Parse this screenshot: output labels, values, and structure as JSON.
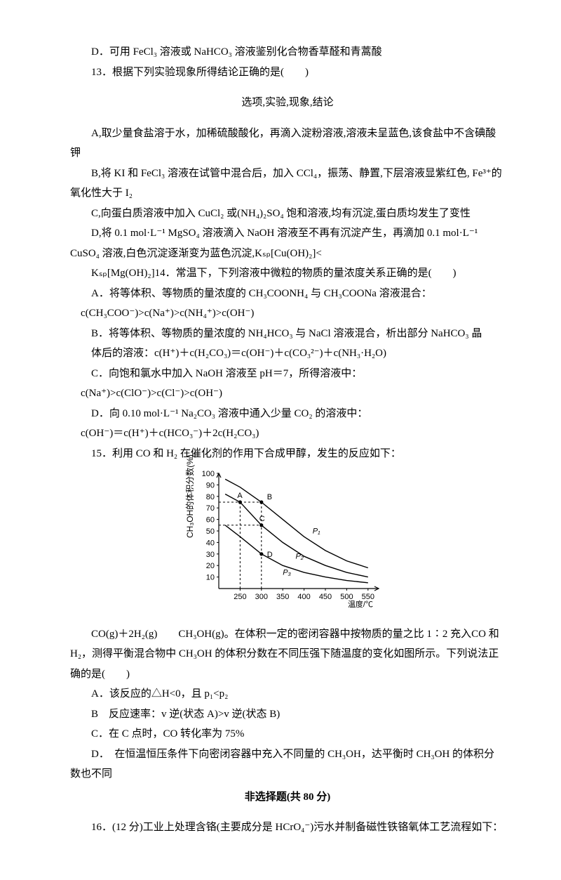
{
  "q12d": "D．可用 FeCl₃ 溶液或 NaHCO₃ 溶液鉴别化合物香草醛和青蒿酸",
  "q13": {
    "stem": "13．根据下列实验现象所得结论正确的是(　　)",
    "header": "选项,实验,现象,结论",
    "a": "A,取少量食盐溶于水，加稀硫酸酸化，再滴入淀粉溶液,溶液未呈蓝色,该食盐中不含碘酸钾",
    "b": "B,将 KI 和 FeCl₃ 溶液在试管中混合后，加入 CCl₄，振荡、静置,下层溶液显紫红色, Fe³⁺的氧化性大于 I₂",
    "c": "C,向蛋白质溶液中加入 CuCl₂ 或(NH₄)₂SO₄ 饱和溶液,均有沉淀,蛋白质均发生了变性",
    "d1": "D,将 0.1 mol·L⁻¹ MgSO₄ 溶液滴入 NaOH 溶液至不再有沉淀产生，再滴加 0.1 mol·L⁻¹ CuSO₄ 溶液,白色沉淀逐渐变为蓝色沉淀,Kₛₚ[Cu(OH)₂]<"
  },
  "q14": {
    "stem": "Kₛₚ[Mg(OH)₂]14．常温下，下列溶液中微粒的物质的量浓度关系正确的是(　　)",
    "a1": "A．将等体积、等物质的量浓度的 CH₃COONH₄ 与 CH₃COONa 溶液混合：",
    "a2": "c(CH₃COO⁻)>c(Na⁺)>c(NH₄⁺)>c(OH⁻)",
    "b1": "B．将等体积、等物质的量浓度的 NH₄HCO₃ 与 NaCl 溶液混合，析出部分 NaHCO₃ 晶",
    "b2": "体后的溶液：c(H⁺)＋c(H₂CO₃)＝c(OH⁻)＋c(CO₃²⁻)＋c(NH₃·H₂O)",
    "c1": "C．向饱和氯水中加入 NaOH 溶液至 pH＝7，所得溶液中：",
    "c2": "c(Na⁺)>c(ClO⁻)>c(Cl⁻)>c(OH⁻)",
    "d1": "D．向 0.10 mol·L⁻¹ Na₂CO₃ 溶液中通入少量 CO₂ 的溶液中：",
    "d2": "c(OH⁻)＝c(H⁺)＋c(HCO₃⁻)＋2c(H₂CO₃)"
  },
  "q15": {
    "stem": "15．利用 CO 和 H₂ 在催化剂的作用下合成甲醇，发生的反应如下：",
    "eq": "CO(g)＋2H₂(g)　　CH₃OH(g)。在体积一定的密闭容器中按物质的量之比 1∶2 充入CO 和 H₂，测得平衡混合物中 CH₃OH 的体积分数在不同压强下随温度的变化如图所示。下列说法正确的是(　　)",
    "a": "A．该反应的△H<0，且 p₁<p₂",
    "b": "B　反应速率：v 逆(状态 A)>v 逆(状态 B)",
    "c": "C．在 C 点时，CO 转化率为 75%",
    "d": "D．　在恒温恒压条件下向密闭容器中充入不同量的 CH₃OH，达平衡时 CH₃OH 的体积分数也不同"
  },
  "section2": "非选择题(共 80 分)",
  "q16": "16．(12 分)工业上处理含铬(主要成分是 HCrO₄⁻)污水并制备磁性铁铬氧体工艺流程如下：",
  "chart": {
    "ylabel": "CH₃OH的体积分数(%)",
    "xlabel": "温度/℃",
    "ymin": 0,
    "ymax": 100,
    "yticks": [
      10,
      20,
      30,
      40,
      50,
      60,
      70,
      80,
      90,
      100
    ],
    "xmin": 200,
    "xmax": 575,
    "xticks": [
      250,
      300,
      350,
      400,
      450,
      500,
      550
    ],
    "points": {
      "A": {
        "x": 250,
        "y": 75,
        "label": "A"
      },
      "B": {
        "x": 300,
        "y": 75,
        "label": "B"
      },
      "C": {
        "x": 300,
        "y": 55,
        "label": "C"
      },
      "D": {
        "x": 300,
        "y": 30,
        "label": "D"
      }
    },
    "series_labels": {
      "p1": "P₁",
      "p2": "P₂",
      "p3": "P₃"
    },
    "curves": {
      "p1": [
        [
          215,
          95
        ],
        [
          250,
          88
        ],
        [
          300,
          75
        ],
        [
          350,
          60
        ],
        [
          400,
          45
        ],
        [
          450,
          33
        ],
        [
          500,
          24
        ],
        [
          550,
          18
        ]
      ],
      "p2": [
        [
          215,
          82
        ],
        [
          250,
          75
        ],
        [
          300,
          55
        ],
        [
          350,
          40
        ],
        [
          400,
          28
        ],
        [
          450,
          20
        ],
        [
          500,
          14
        ],
        [
          550,
          10
        ]
      ],
      "p3": [
        [
          215,
          55
        ],
        [
          250,
          45
        ],
        [
          300,
          30
        ],
        [
          350,
          20
        ],
        [
          400,
          14
        ],
        [
          450,
          10
        ],
        [
          500,
          7
        ],
        [
          550,
          5
        ]
      ]
    },
    "colors": {
      "axis": "#000000",
      "curve": "#000000",
      "point_fill": "#000000",
      "dash": "#000000"
    },
    "line_width": 1.4,
    "dash_pattern": "3,3",
    "font_size": 11,
    "background": "#ffffff"
  }
}
